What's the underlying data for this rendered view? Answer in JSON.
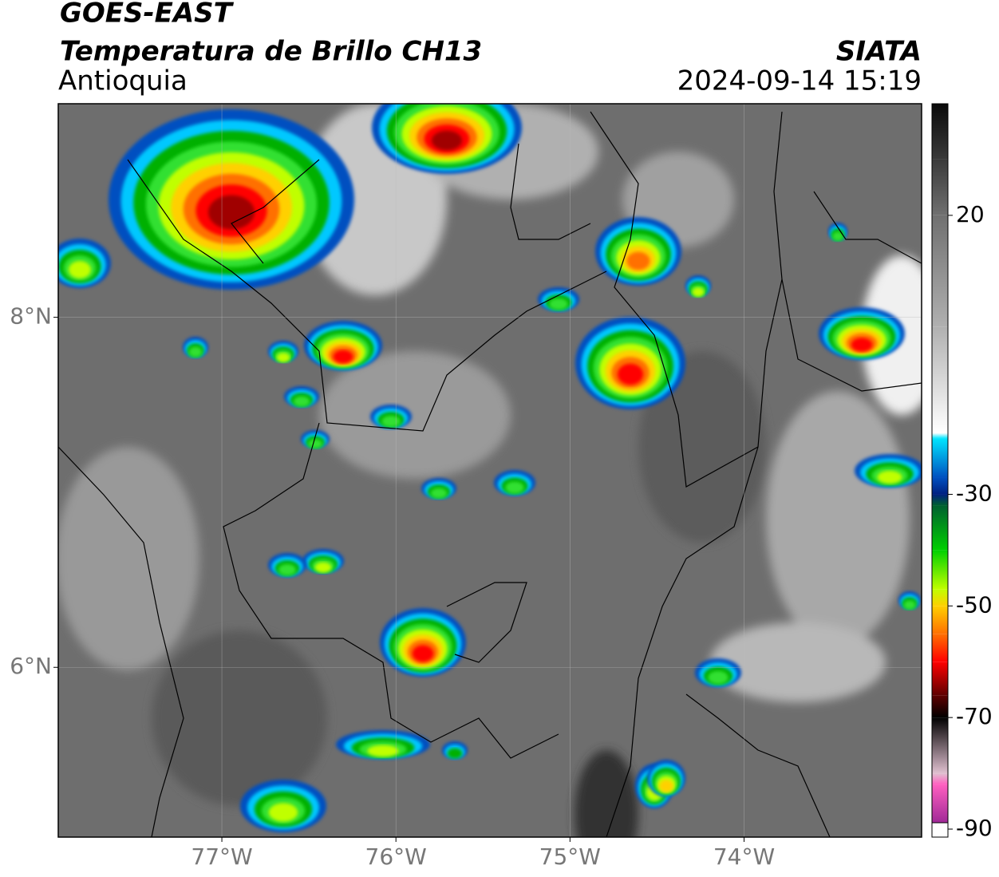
{
  "header": {
    "title": "GOES-EAST",
    "subtitle": "Temperatura de Brillo CH13",
    "region": "Antioquia",
    "source": "SIATA",
    "datetime": "2024-09-14 15:19"
  },
  "map": {
    "xlim": [
      -77.94,
      -72.98
    ],
    "ylim": [
      5.03,
      9.22
    ],
    "xticks": [
      {
        "value": -77,
        "label": "77°W"
      },
      {
        "value": -76,
        "label": "76°W"
      },
      {
        "value": -75,
        "label": "75°W"
      },
      {
        "value": -74,
        "label": "74°W"
      }
    ],
    "yticks": [
      {
        "value": 6,
        "label": "6°N"
      },
      {
        "value": 8,
        "label": "8°N"
      }
    ],
    "grid": true
  },
  "colorbar": {
    "clim": [
      -90,
      40
    ],
    "ticks": [
      20,
      -30,
      -50,
      -70,
      -90
    ],
    "stops": [
      [
        40,
        "#0a0a0a"
      ],
      [
        30,
        "#3a3a3a"
      ],
      [
        20,
        "#707070"
      ],
      [
        0,
        "#b0b0b0"
      ],
      [
        -19,
        "#ffffff"
      ],
      [
        -20,
        "#00e5ff"
      ],
      [
        -27,
        "#0050c0"
      ],
      [
        -30,
        "#002080"
      ],
      [
        -32,
        "#006030"
      ],
      [
        -40,
        "#00d000"
      ],
      [
        -47,
        "#c0ff00"
      ],
      [
        -50,
        "#ffd000"
      ],
      [
        -55,
        "#ff7000"
      ],
      [
        -60,
        "#ff0000"
      ],
      [
        -66,
        "#600000"
      ],
      [
        -70,
        "#000000"
      ],
      [
        -80,
        "#e0c0d0"
      ],
      [
        -82,
        "#ff60c0"
      ],
      [
        -90,
        "#902090"
      ]
    ]
  }
}
